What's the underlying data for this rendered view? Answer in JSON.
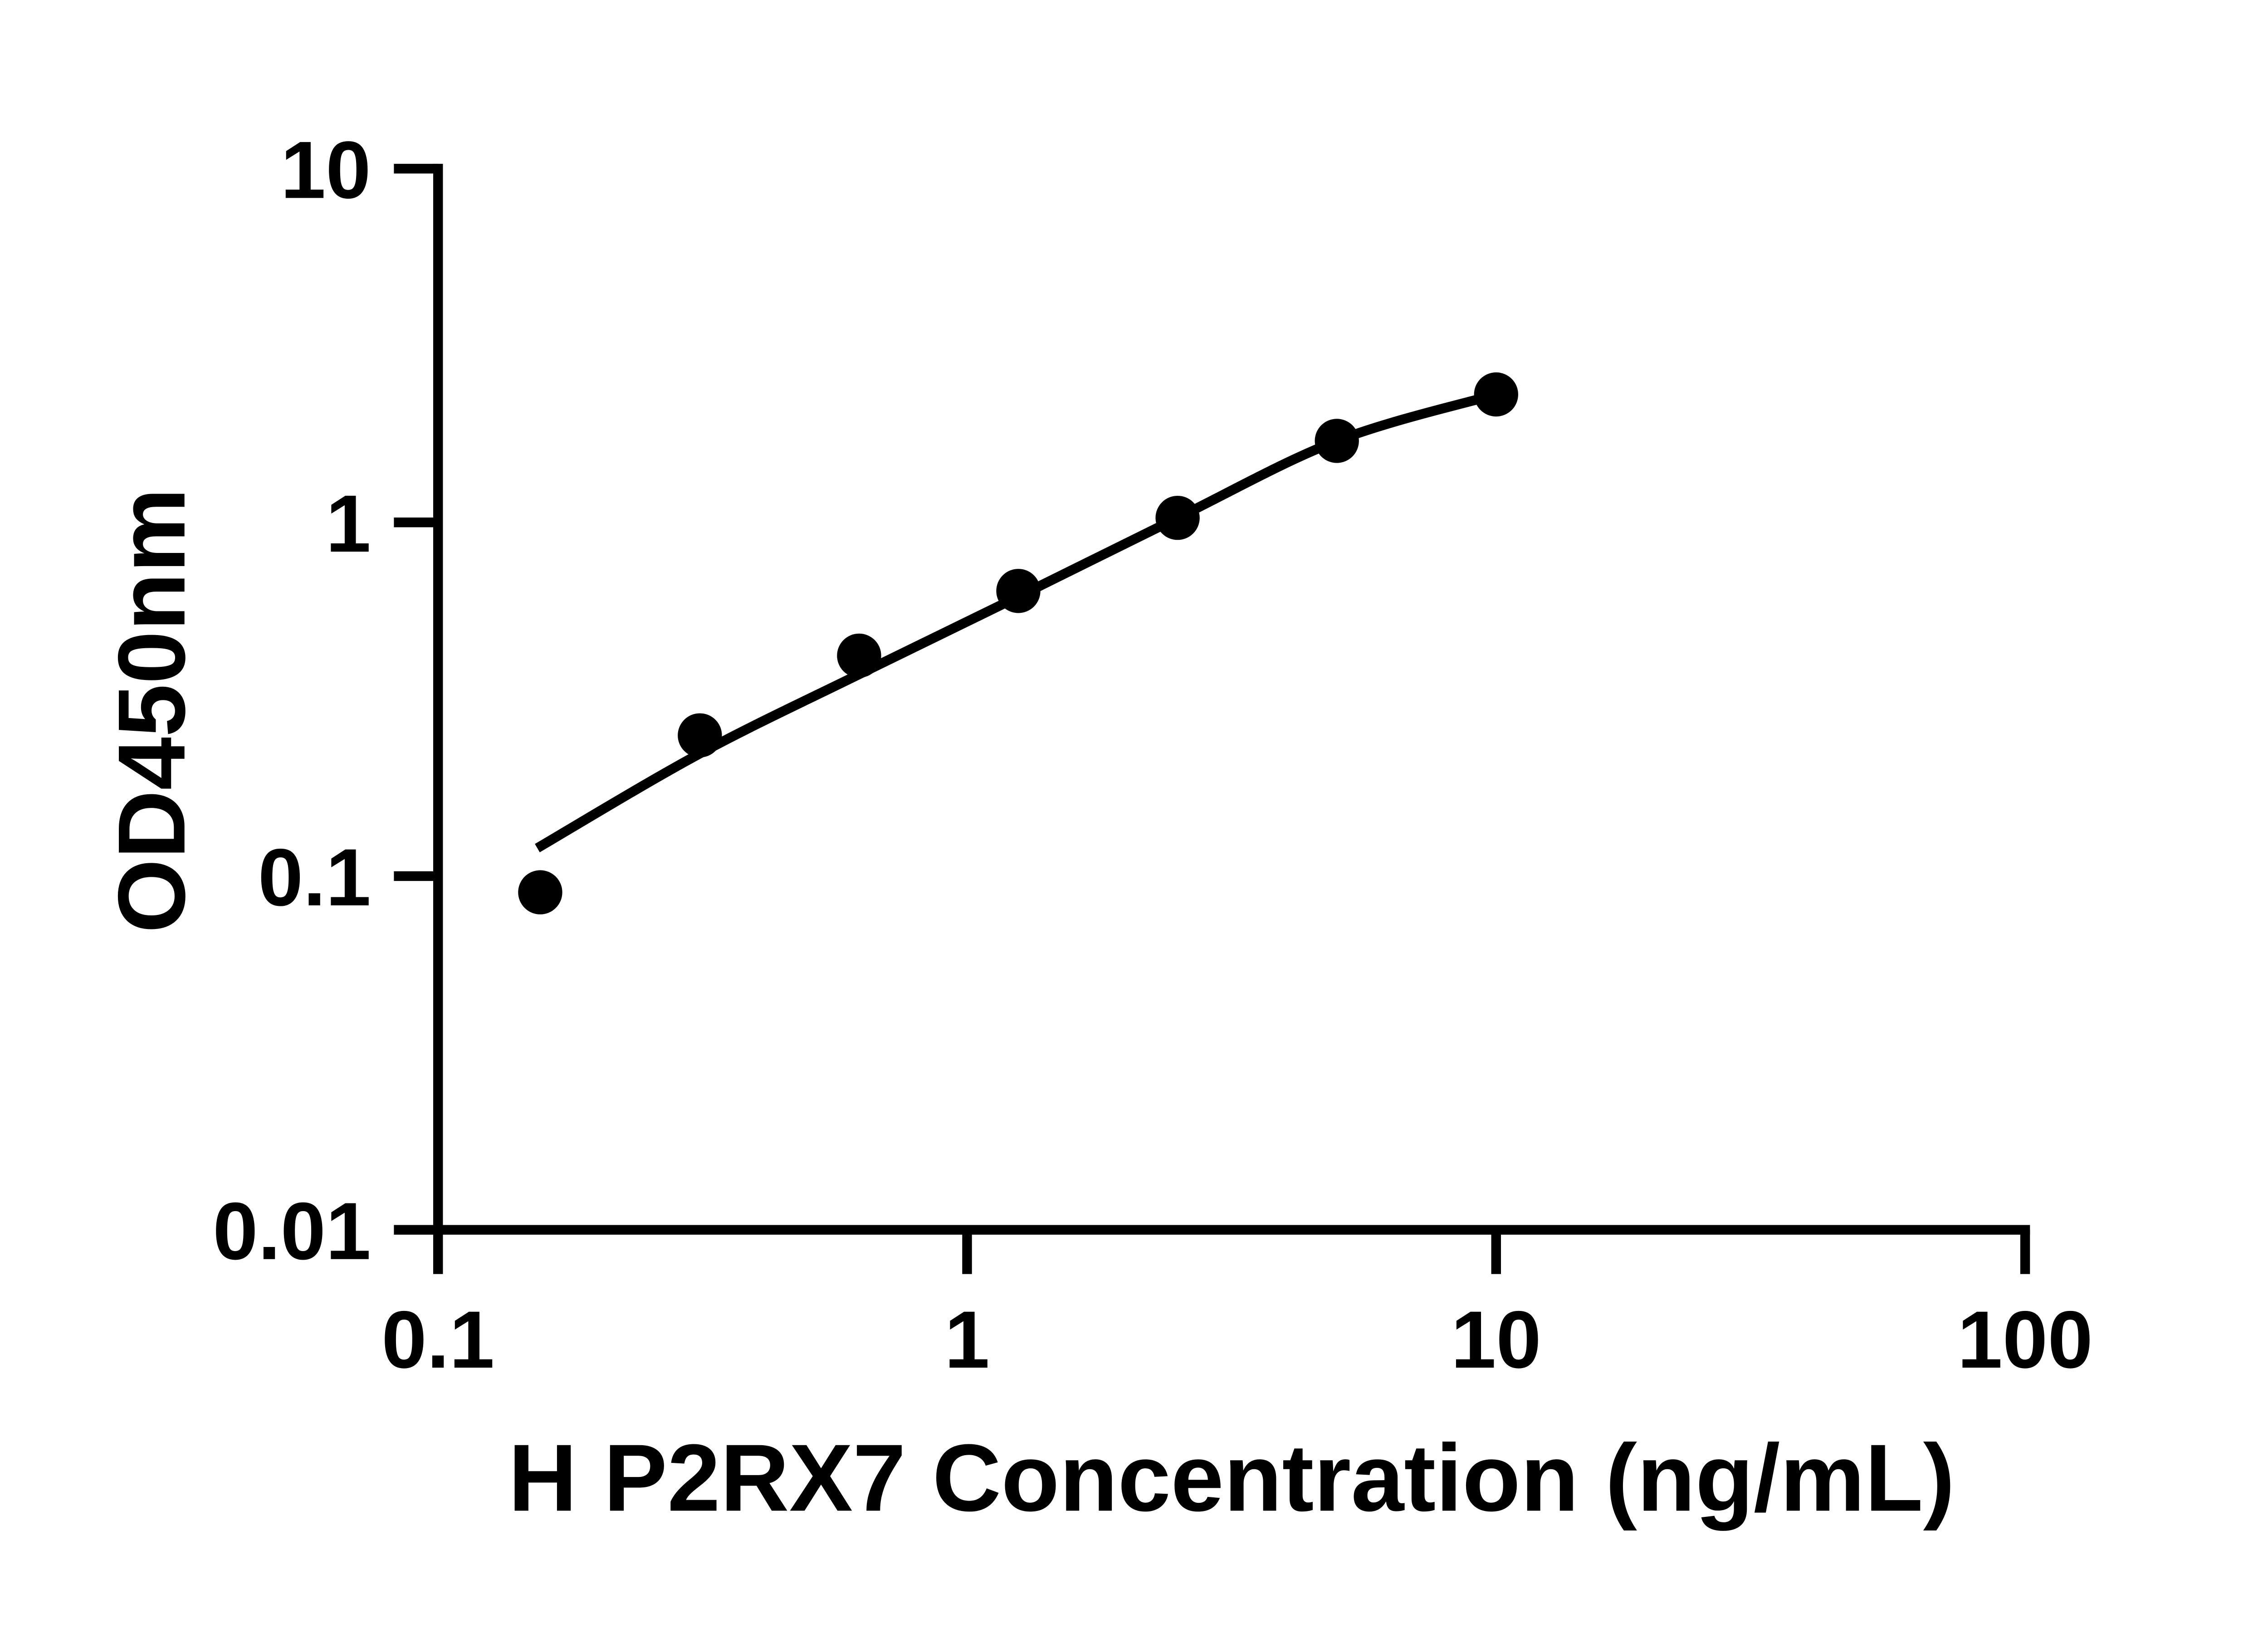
{
  "figure": {
    "background": "#ffffff",
    "axis_color": "#000000",
    "text_color": "#000000"
  },
  "chart_data": {
    "type": "scatter",
    "title": "",
    "xlabel": "H P2RX7 Concentration (ng/mL)",
    "ylabel": "OD450nm",
    "x_scale": "log",
    "y_scale": "log",
    "xlim": [
      0.1,
      100
    ],
    "ylim": [
      0.01,
      10
    ],
    "x_ticks": {
      "values": [
        0.1,
        1,
        10,
        100
      ],
      "labels": [
        "0.1",
        "1",
        "10",
        "100"
      ]
    },
    "y_ticks": {
      "values": [
        0.01,
        0.1,
        1,
        10
      ],
      "labels": [
        "0.01",
        "0.1",
        "1",
        "10"
      ]
    },
    "grid": false,
    "legend": false,
    "series": [
      {
        "name": "standard-points",
        "kind": "scatter",
        "marker": "filled-circle",
        "color": "#000000",
        "points": [
          {
            "x": 0.156,
            "y": 0.09
          },
          {
            "x": 0.3125,
            "y": 0.25
          },
          {
            "x": 0.625,
            "y": 0.42
          },
          {
            "x": 1.25,
            "y": 0.64
          },
          {
            "x": 2.5,
            "y": 1.03
          },
          {
            "x": 5,
            "y": 1.7
          },
          {
            "x": 10,
            "y": 2.3
          }
        ]
      },
      {
        "name": "fit-curve",
        "kind": "line",
        "color": "#000000",
        "points": [
          {
            "x": 0.154,
            "y": 0.12
          },
          {
            "x": 0.3125,
            "y": 0.222
          },
          {
            "x": 0.625,
            "y": 0.372
          },
          {
            "x": 1.25,
            "y": 0.617
          },
          {
            "x": 2.5,
            "y": 1.03
          },
          {
            "x": 5,
            "y": 1.7
          },
          {
            "x": 10,
            "y": 2.3
          }
        ]
      }
    ]
  }
}
